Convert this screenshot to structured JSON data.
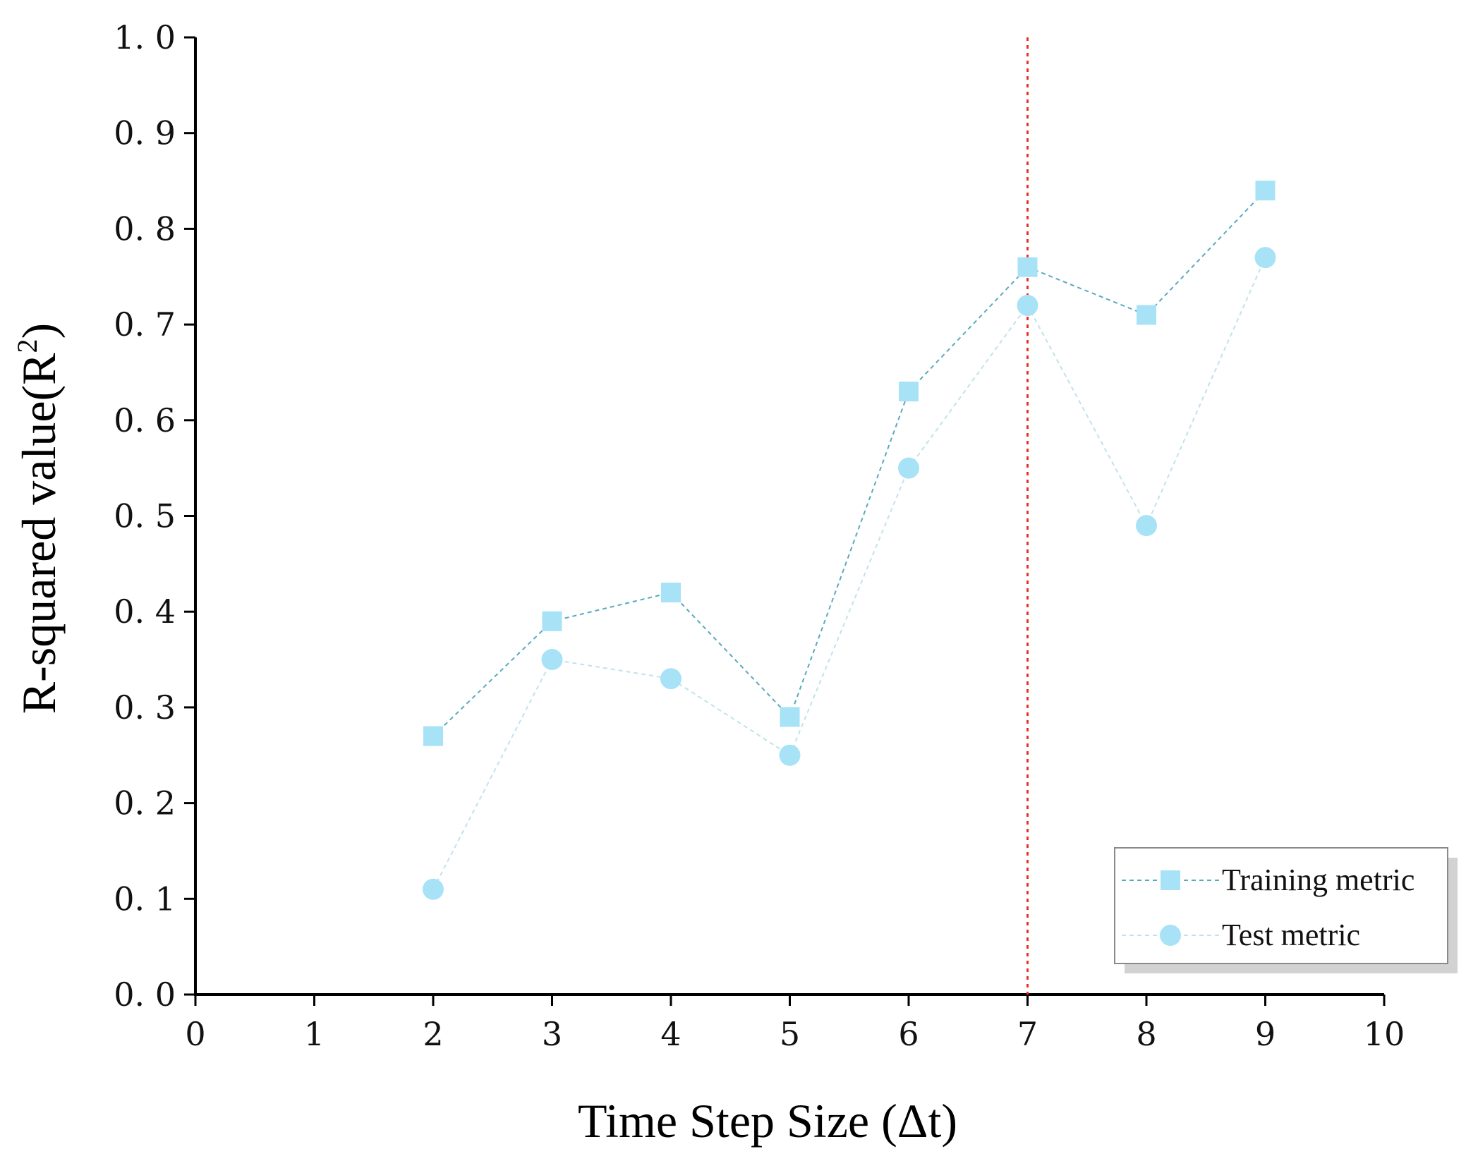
{
  "chart_data": {
    "type": "line",
    "title": "",
    "xlabel": "Time Step Size (Δt)",
    "ylabel": "R-squared value(R",
    "ylabel_superscript": "2",
    "ylabel_suffix": ")",
    "xlim": [
      0,
      10
    ],
    "ylim": [
      0.0,
      1.0
    ],
    "xticks": [
      0,
      1,
      2,
      3,
      4,
      5,
      6,
      7,
      8,
      9,
      10
    ],
    "xtick_labels": [
      "0",
      "1",
      "2",
      "3",
      "4",
      "5",
      "6",
      "7",
      "8",
      "9",
      "10"
    ],
    "yticks": [
      0.0,
      0.1,
      0.2,
      0.3,
      0.4,
      0.5,
      0.6,
      0.7,
      0.8,
      0.9,
      1.0
    ],
    "ytick_labels": [
      "0. 0",
      "0. 1",
      "0. 2",
      "0. 3",
      "0. 4",
      "0. 5",
      "0. 6",
      "0. 7",
      "0. 8",
      "0. 9",
      "1. 0"
    ],
    "grid": false,
    "legend_position": "bottom-right",
    "reference_line": {
      "x": 7,
      "color": "#e8322b",
      "style": "dotted"
    },
    "series": [
      {
        "name": "Training metric",
        "marker": "square",
        "color": "#a7e2f7",
        "line_color": "#5aa9bd",
        "x": [
          2,
          3,
          4,
          5,
          6,
          7,
          8,
          9
        ],
        "values": [
          0.27,
          0.39,
          0.42,
          0.29,
          0.63,
          0.76,
          0.71,
          0.84
        ]
      },
      {
        "name": "Test metric",
        "marker": "circle",
        "color": "#a7e2f7",
        "line_color": "#bfe3ea",
        "x": [
          2,
          3,
          4,
          5,
          6,
          7,
          8,
          9
        ],
        "values": [
          0.11,
          0.35,
          0.33,
          0.25,
          0.55,
          0.72,
          0.49,
          0.77
        ]
      }
    ]
  }
}
